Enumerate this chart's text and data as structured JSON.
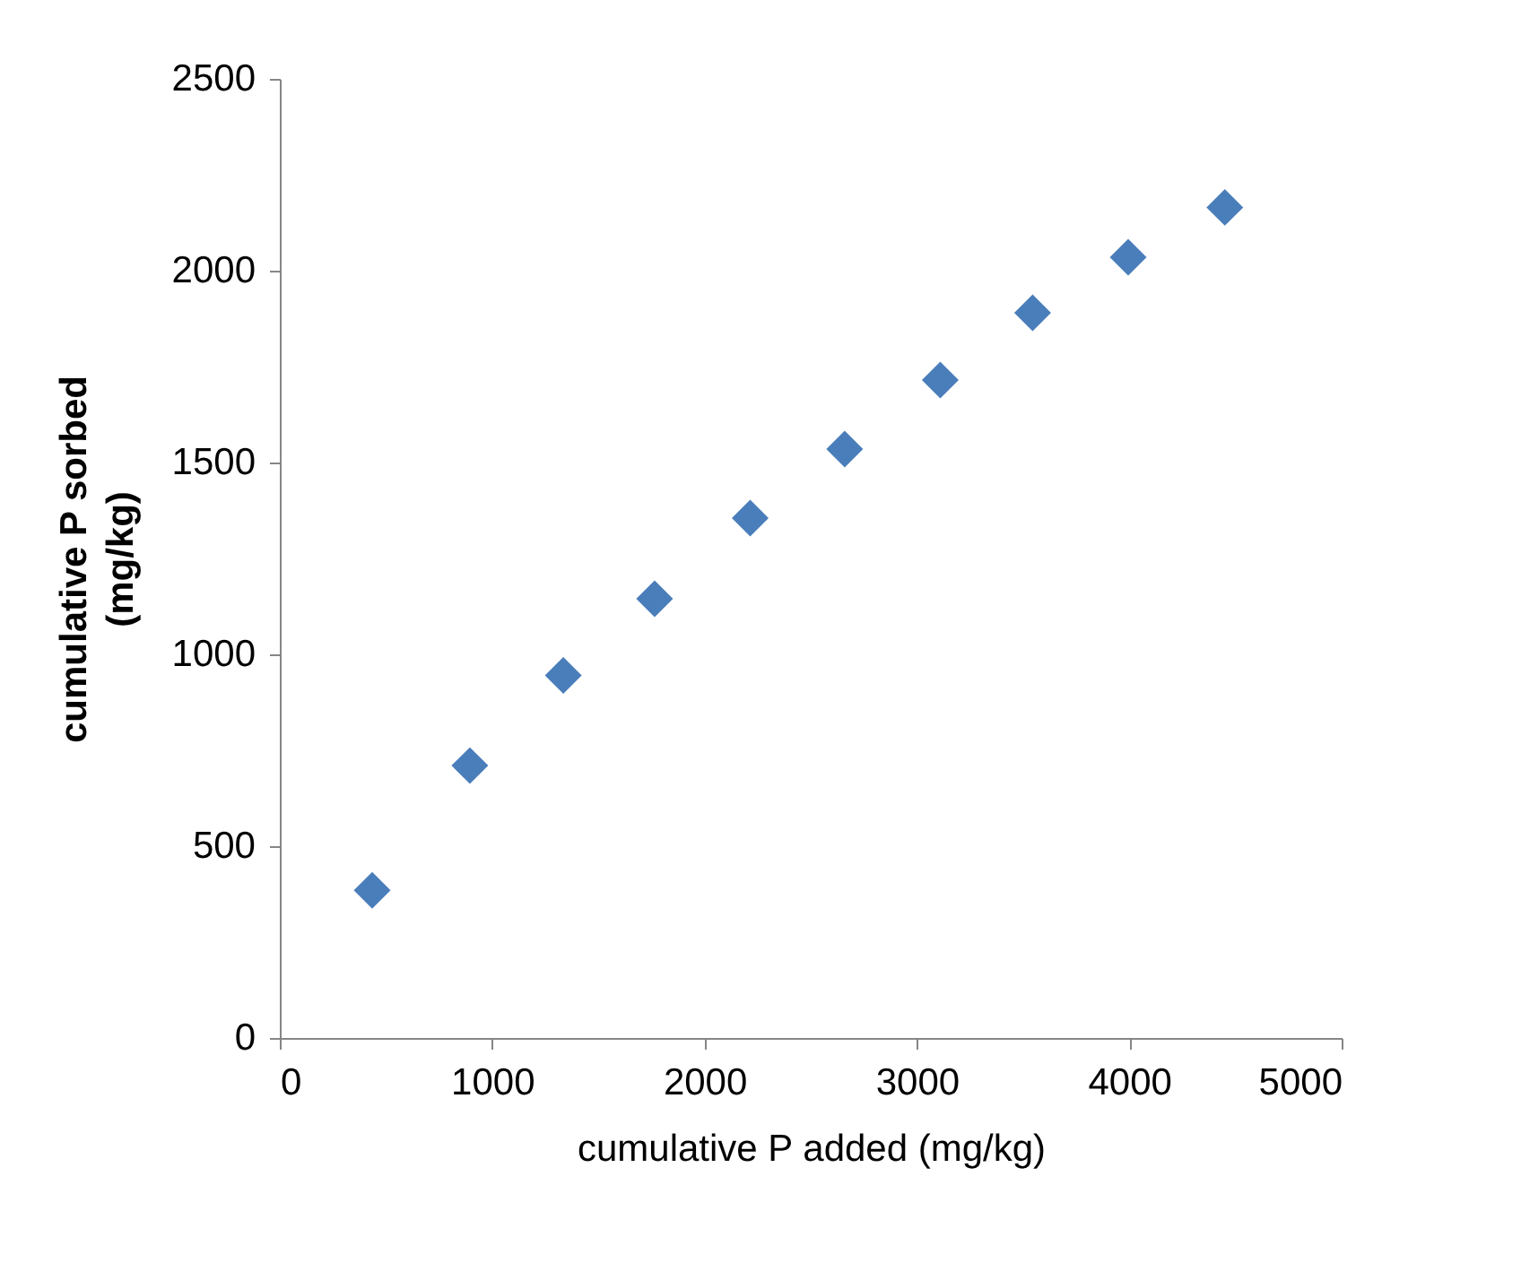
{
  "chart_data": {
    "type": "scatter",
    "xlabel": "cumulative  P added (mg/kg)",
    "ylabel": "cumulative  P sorbed\n(mg/kg)",
    "x": [
      435,
      895,
      1335,
      1765,
      2215,
      2660,
      3110,
      3545,
      3995,
      4450
    ],
    "values": [
      385,
      710,
      945,
      1145,
      1355,
      1535,
      1715,
      1890,
      2035,
      2165
    ],
    "color": "#4a7ebb",
    "marker": "diamond",
    "grid": false,
    "legend": false,
    "xlim": [
      0,
      5000
    ],
    "xticks": [
      0,
      1000,
      2000,
      3000,
      4000,
      5000
    ],
    "ylim": [
      0,
      2500
    ],
    "yticks": [
      0,
      500,
      1000,
      1500,
      2000,
      2500
    ]
  }
}
